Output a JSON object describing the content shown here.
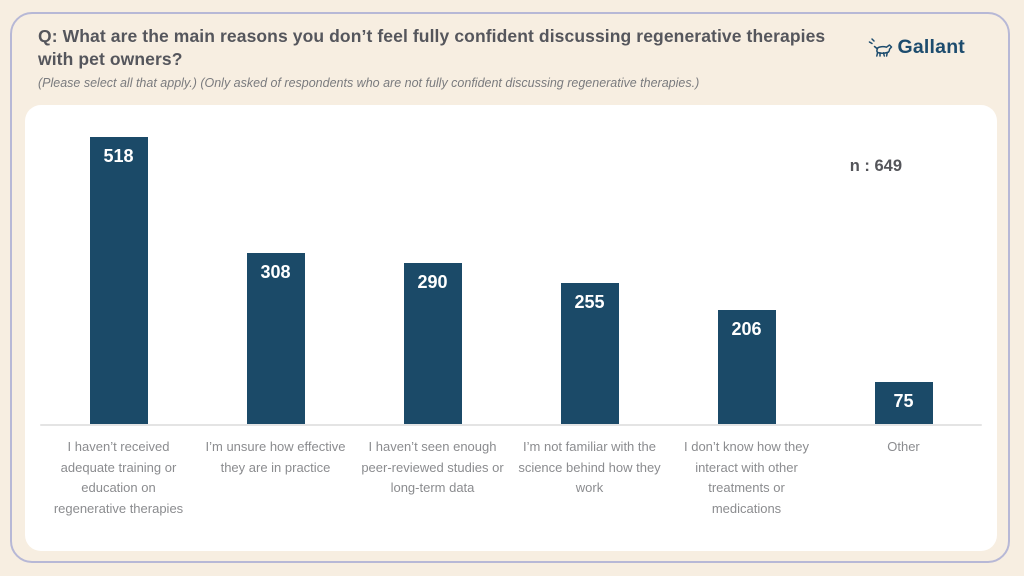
{
  "header": {
    "title": "Q: What are the main reasons you don’t feel fully confident discussing regenerative therapies with pet owners?",
    "subtitle": "(Please select all that apply.) (Only asked of respondents who are not fully confident discussing regenerative therapies.)",
    "brand": "Gallant"
  },
  "colors": {
    "bar": "#1b4a68",
    "brand_navy": "#1d4c6e",
    "page_background": "#f7eee1",
    "card_background": "#ffffff",
    "frame_border": "#b7b8d6"
  },
  "chart_data": {
    "type": "bar",
    "title": "",
    "xlabel": "",
    "ylabel": "",
    "categories": [
      "I haven’t received adequate training or education on regenerative therapies",
      "I’m unsure how effective they are in practice",
      "I haven’t seen enough peer-reviewed studies or long-term data",
      "I’m not familiar with the science behind how they work",
      "I don’t know how they interact with other treatments or medications",
      "Other"
    ],
    "values": [
      518,
      308,
      290,
      255,
      206,
      75
    ],
    "value_label_position": "inside-top",
    "sample_size_label": "n : 649",
    "ylim": [
      0,
      575
    ],
    "grid": false,
    "legend": "none"
  }
}
